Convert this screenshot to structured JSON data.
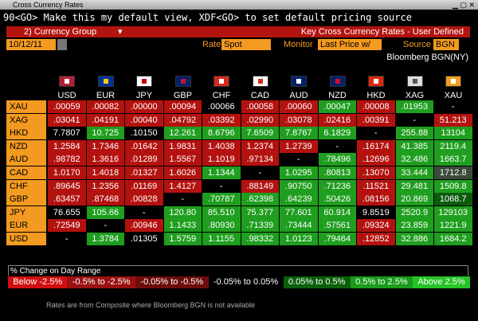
{
  "window_title": "Cross Currency Rates",
  "command_line": "90<GO> Make this my default view, XDF<GO> to set default pricing source",
  "menu": {
    "group": "2) Currency Group",
    "title": "Key Cross Currency Rates - User Defined"
  },
  "controls": {
    "date": "10/12/11",
    "rate_label": "Rate",
    "rate": "Spot",
    "monitor_label": "Monitor",
    "monitor": "Last Price w/",
    "source_label": "Source",
    "source": "BGN"
  },
  "pricing_source": "Bloomberg BGN(NY)",
  "table": {
    "columns": [
      "USD",
      "EUR",
      "JPY",
      "GBP",
      "CHF",
      "CAD",
      "AUD",
      "NZD",
      "HKD",
      "XAG",
      "XAU"
    ],
    "rows": [
      {
        "label": "XAU",
        "cells": [
          ".00059",
          ".00082",
          ".00000",
          ".00094",
          ".00066",
          ".00058",
          ".00060",
          ".00047",
          ".00008",
          ".01953",
          "-"
        ],
        "colors": [
          "#b3120f",
          "#b3120f",
          "#b3120f",
          "#b3120f",
          "#000000",
          "#b3120f",
          "#b3120f",
          "#1f9e1f",
          "#b3120f",
          "#1f9e1f",
          "#000000"
        ]
      },
      {
        "label": "XAG",
        "cells": [
          ".03041",
          ".04191",
          ".00040",
          ".04792",
          ".03392",
          ".02990",
          ".03078",
          ".02416",
          ".00391",
          "-",
          "51.213"
        ],
        "colors": [
          "#b3120f",
          "#b3120f",
          "#b3120f",
          "#b3120f",
          "#b3120f",
          "#b3120f",
          "#b3120f",
          "#b3120f",
          "#b3120f",
          "#000000",
          "#b3120f"
        ]
      },
      {
        "label": "HKD",
        "cells": [
          "7.7807",
          "10.725",
          ".10150",
          "12.261",
          "8.6796",
          "7.6509",
          "7.8767",
          "6.1829",
          "-",
          "255.88",
          "13104"
        ],
        "colors": [
          "#000000",
          "#1f9e1f",
          "#000000",
          "#1f9e1f",
          "#1f9e1f",
          "#1f9e1f",
          "#1f9e1f",
          "#1f9e1f",
          "#000000",
          "#1f9e1f",
          "#1f9e1f"
        ]
      },
      {
        "label": "NZD",
        "cells": [
          "1.2584",
          "1.7346",
          ".01642",
          "1.9831",
          "1.4038",
          "1.2374",
          "1.2739",
          "-",
          ".16174",
          "41.385",
          "2119.4"
        ],
        "colors": [
          "#b3120f",
          "#b3120f",
          "#b3120f",
          "#b3120f",
          "#b3120f",
          "#b3120f",
          "#b3120f",
          "#000000",
          "#b3120f",
          "#1f9e1f",
          "#1f9e1f"
        ]
      },
      {
        "label": "AUD",
        "cells": [
          ".98782",
          "1.3616",
          ".01289",
          "1.5567",
          "1.1019",
          ".97134",
          "-",
          ".78496",
          ".12696",
          "32.486",
          "1663.7"
        ],
        "colors": [
          "#b3120f",
          "#b3120f",
          "#b3120f",
          "#b3120f",
          "#b3120f",
          "#b3120f",
          "#000000",
          "#1f9e1f",
          "#b3120f",
          "#1f9e1f",
          "#1f9e1f"
        ]
      },
      {
        "label": "CAD",
        "cells": [
          "1.0170",
          "1.4018",
          ".01327",
          "1.6026",
          "1.1344",
          "-",
          "1.0295",
          ".80813",
          ".13070",
          "33.444",
          "1712.8"
        ],
        "colors": [
          "#b3120f",
          "#b3120f",
          "#b3120f",
          "#b3120f",
          "#1f9e1f",
          "#000000",
          "#1f9e1f",
          "#1f9e1f",
          "#b3120f",
          "#1f9e1f",
          "#3c4a3c"
        ]
      },
      {
        "label": "CHF",
        "cells": [
          ".89645",
          "1.2356",
          ".01169",
          "1.4127",
          "-",
          ".88149",
          ".90750",
          ".71236",
          ".11521",
          "29.481",
          "1509.8"
        ],
        "colors": [
          "#b3120f",
          "#b3120f",
          "#b3120f",
          "#b3120f",
          "#000000",
          "#b3120f",
          "#1f9e1f",
          "#1f9e1f",
          "#b3120f",
          "#1f9e1f",
          "#1f9e1f"
        ]
      },
      {
        "label": "GBP",
        "cells": [
          ".63457",
          ".87468",
          ".00828",
          "-",
          ".70787",
          ".62398",
          ".64239",
          ".50426",
          ".08156",
          "20.869",
          "1068.7"
        ],
        "colors": [
          "#b3120f",
          "#b3120f",
          "#b3120f",
          "#000000",
          "#1f9e1f",
          "#1f9e1f",
          "#1f9e1f",
          "#1f9e1f",
          "#b3120f",
          "#1f9e1f",
          "#0c5a0c"
        ]
      },
      {
        "label": "JPY",
        "cells": [
          "76.655",
          "105.66",
          "-",
          "120.80",
          "85.510",
          "75.377",
          "77.601",
          "60.914",
          "9.8519",
          "2520.9",
          "129103"
        ],
        "colors": [
          "#000000",
          "#1f9e1f",
          "#000000",
          "#1f9e1f",
          "#1f9e1f",
          "#1f9e1f",
          "#1f9e1f",
          "#1f9e1f",
          "#000000",
          "#1f9e1f",
          "#1f9e1f"
        ]
      },
      {
        "label": "EUR",
        "cells": [
          ".72549",
          "-",
          ".00946",
          "1.1433",
          ".80930",
          ".71339",
          ".73444",
          ".57561",
          ".09324",
          "23.859",
          "1221.9"
        ],
        "colors": [
          "#b3120f",
          "#000000",
          "#b3120f",
          "#1f9e1f",
          "#1f9e1f",
          "#1f9e1f",
          "#1f9e1f",
          "#1f9e1f",
          "#b3120f",
          "#1f9e1f",
          "#1f9e1f"
        ]
      },
      {
        "label": "USD",
        "cells": [
          "-",
          "1.3784",
          ".01305",
          "1.5759",
          "1.1155",
          ".98332",
          "1.0123",
          ".79464",
          ".12852",
          "32.886",
          "1684.2"
        ],
        "colors": [
          "#000000",
          "#1f9e1f",
          "#000000",
          "#1f9e1f",
          "#1f9e1f",
          "#1f9e1f",
          "#1f9e1f",
          "#1f9e1f",
          "#b3120f",
          "#1f9e1f",
          "#1f9e1f"
        ]
      }
    ]
  },
  "range": {
    "title": "% Change on Day Range",
    "items": [
      {
        "label": "Below -2.5%",
        "color": "#d01010"
      },
      {
        "label": "-0.5% to -2.5%",
        "color": "#9a1010"
      },
      {
        "label": "-0.05% to -0.5%",
        "color": "#6e0c0c"
      },
      {
        "label": "-0.05% to 0.05%",
        "color": "#000000"
      },
      {
        "label": "0.05% to 0.5%",
        "color": "#0b5f0b"
      },
      {
        "label": "0.5% to 2.5%",
        "color": "#1b9a1b"
      },
      {
        "label": "Above 2.5%",
        "color": "#27c427"
      }
    ]
  },
  "footer": "Rates are from Composite where Bloomberg BGN is not available"
}
